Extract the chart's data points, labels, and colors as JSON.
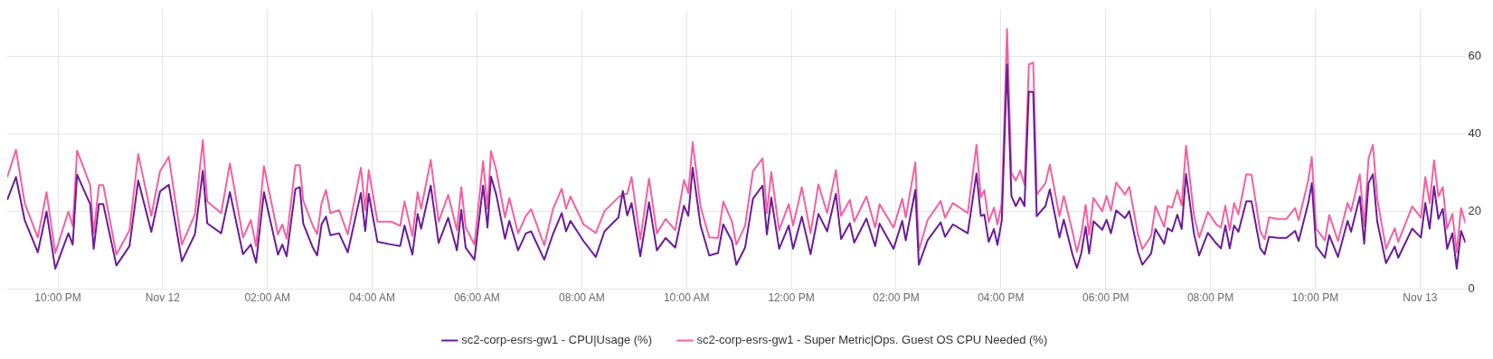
{
  "chart_data": {
    "type": "line",
    "x": [
      "--11-11T21:02",
      "--11-11T21:12",
      "--11-11T21:22",
      "--11-11T21:37",
      "--11-11T21:47",
      "--11-11T21:57",
      "--11-11T22:12",
      "--11-11T22:17",
      "--11-11T22:22",
      "--11-11T22:37",
      "--11-11T22:41",
      "--11-11T22:47",
      "--11-11T22:52",
      "--11-11T23:07",
      "--11-11T23:22",
      "--11-11T23:32",
      "--11-11T23:47",
      "--11-11T23:57",
      "--11-12T00:07",
      "--11-12T00:22",
      "--11-12T00:37",
      "--11-12T00:46",
      "--11-12T00:51",
      "--11-12T01:07",
      "--11-12T01:17",
      "--11-12T01:32",
      "--11-12T01:41",
      "--11-12T01:47",
      "--11-12T01:56",
      "--11-12T02:12",
      "--11-12T02:17",
      "--11-12T02:22",
      "--11-12T02:32",
      "--11-12T02:37",
      "--11-12T02:41",
      "--11-12T02:52",
      "--11-12T02:57",
      "--11-12T03:02",
      "--11-12T03:07",
      "--11-12T03:12",
      "--11-12T03:22",
      "--11-12T03:32",
      "--11-12T03:47",
      "--11-12T03:52",
      "--11-12T03:56",
      "--11-12T04:06",
      "--11-12T04:22",
      "--11-12T04:32",
      "--11-12T04:37",
      "--11-12T04:46",
      "--11-12T04:52",
      "--11-12T04:56",
      "--11-12T05:07",
      "--11-12T05:16",
      "--11-12T05:27",
      "--11-12T05:37",
      "--11-12T05:42",
      "--11-12T05:47",
      "--11-12T05:57",
      "--11-12T06:07",
      "--11-12T06:12",
      "--11-12T06:16",
      "--11-12T06:22",
      "--11-12T06:32",
      "--11-12T06:37",
      "--11-12T06:47",
      "--11-12T06:56",
      "--11-12T07:02",
      "--11-12T07:17",
      "--11-12T07:27",
      "--11-12T07:37",
      "--11-12T07:42",
      "--11-12T07:47",
      "--11-12T08:02",
      "--11-12T08:16",
      "--11-12T08:26",
      "--11-12T08:42",
      "--11-12T08:47",
      "--11-12T08:52",
      "--11-12T08:57",
      "--11-12T09:07",
      "--11-12T09:17",
      "--11-12T09:26",
      "--11-12T09:36",
      "--11-12T09:47",
      "--11-12T09:57",
      "--11-12T10:02",
      "--11-12T10:07",
      "--11-12T10:16",
      "--11-12T10:26",
      "--11-12T10:36",
      "--11-12T10:42",
      "--11-12T10:52",
      "--11-12T10:57",
      "--11-12T11:07",
      "--11-12T11:16",
      "--11-12T11:27",
      "--11-12T11:32",
      "--11-12T11:37",
      "--11-12T11:46",
      "--11-12T11:57",
      "--11-12T12:02",
      "--11-12T12:12",
      "--11-12T12:22",
      "--11-12T12:31",
      "--11-12T12:41",
      "--11-12T12:51",
      "--11-12T12:57",
      "--11-12T13:07",
      "--11-12T13:12",
      "--11-12T13:26",
      "--11-12T13:36",
      "--11-12T13:41",
      "--11-12T13:57",
      "--11-12T14:07",
      "--11-12T14:11",
      "--11-12T14:22",
      "--11-12T14:26",
      "--11-12T14:36",
      "--11-12T14:51",
      "--11-12T14:56",
      "--11-12T15:05",
      "--11-12T15:22",
      "--11-12T15:32",
      "--11-12T15:37",
      "--11-12T15:41",
      "--11-12T15:46",
      "--11-12T15:52",
      "--11-12T15:56",
      "--11-12T16:01",
      "--11-12T16:07",
      "--11-12T16:12",
      "--11-12T16:17",
      "--11-12T16:22",
      "--11-12T16:27",
      "--11-12T16:32",
      "--11-12T16:37",
      "--11-12T16:41",
      "--11-12T16:51",
      "--11-12T16:56",
      "--11-12T17:07",
      "--11-12T17:12",
      "--11-12T17:22",
      "--11-12T17:27",
      "--11-12T17:32",
      "--11-12T17:37",
      "--11-12T17:41",
      "--11-12T17:46",
      "--11-12T17:56",
      "--11-12T18:01",
      "--11-12T18:06",
      "--11-12T18:12",
      "--11-12T18:22",
      "--11-12T18:27",
      "--11-12T18:37",
      "--11-12T18:42",
      "--11-12T18:52",
      "--11-12T18:57",
      "--11-12T19:07",
      "--11-12T19:11",
      "--11-12T19:16",
      "--11-12T19:22",
      "--11-12T19:27",
      "--11-12T19:32",
      "--11-12T19:41",
      "--11-12T19:47",
      "--11-12T19:57",
      "--11-12T20:07",
      "--11-12T20:12",
      "--11-12T20:17",
      "--11-12T20:22",
      "--11-12T20:27",
      "--11-12T20:32",
      "--11-12T20:41",
      "--11-12T20:47",
      "--11-12T20:57",
      "--11-12T21:02",
      "--11-12T21:07",
      "--11-12T21:17",
      "--11-12T21:27",
      "--11-12T21:37",
      "--11-12T21:41",
      "--11-12T21:52",
      "--11-12T21:56",
      "--11-12T22:01",
      "--11-12T22:11",
      "--11-12T22:16",
      "--11-12T22:26",
      "--11-12T22:37",
      "--11-12T22:41",
      "--11-12T22:51",
      "--11-12T22:56",
      "--11-12T23:01",
      "--11-12T23:06",
      "--11-12T23:11",
      "--11-12T23:21",
      "--11-12T23:31",
      "--11-12T23:35",
      "--11-12T23:51",
      "--11-13T00:01",
      "--11-13T00:06",
      "--11-13T00:11",
      "--11-13T00:16",
      "--11-13T00:21",
      "--11-13T00:26",
      "--11-13T00:31",
      "--11-13T00:37",
      "--11-13T00:42",
      "--11-13T00:47",
      "--11-13T00:52"
    ],
    "series": [
      {
        "name": "sc2-corp-esrs-gw1 - CPU|Usage (%)",
        "color": "#6a1b9a",
        "values": [
          23.0,
          28.9,
          17.8,
          9.5,
          20.0,
          5.3,
          14.4,
          11.5,
          29.5,
          21.9,
          10.4,
          21.9,
          21.9,
          6.1,
          11.1,
          28.0,
          14.8,
          25.2,
          26.9,
          7.2,
          14.2,
          30.5,
          17.0,
          14.4,
          25.0,
          9.0,
          11.5,
          6.8,
          25.0,
          8.9,
          11.5,
          8.5,
          25.8,
          26.3,
          16.9,
          10.7,
          8.7,
          16.7,
          18.7,
          13.9,
          14.4,
          9.5,
          24.8,
          15.0,
          24.6,
          12.2,
          11.5,
          11.1,
          16.4,
          8.9,
          19.4,
          15.6,
          26.7,
          11.9,
          18.4,
          10.0,
          20.4,
          10.7,
          7.6,
          26.7,
          15.9,
          29.0,
          24.4,
          13.0,
          17.6,
          10.0,
          14.4,
          14.9,
          7.6,
          14.2,
          19.6,
          14.9,
          17.6,
          12.4,
          8.3,
          14.9,
          18.5,
          25.3,
          19.0,
          22.2,
          8.5,
          22.4,
          10.0,
          13.2,
          10.7,
          21.5,
          18.9,
          31.3,
          16.4,
          8.7,
          9.3,
          16.7,
          12.4,
          6.3,
          10.7,
          23.3,
          26.7,
          14.1,
          23.6,
          10.4,
          16.4,
          10.4,
          18.7,
          9.0,
          19.4,
          14.9,
          24.6,
          12.9,
          17.0,
          12.0,
          18.2,
          11.1,
          16.9,
          10.4,
          17.6,
          12.6,
          25.6,
          6.3,
          12.6,
          17.2,
          13.5,
          16.7,
          14.4,
          29.8,
          18.9,
          19.2,
          12.2,
          15.5,
          11.4,
          17.7,
          57.9,
          24.0,
          21.4,
          23.6,
          21.4,
          50.9,
          50.8,
          18.8,
          21.4,
          25.7,
          13.3,
          17.9,
          8.9,
          5.5,
          9.2,
          16.1,
          9.2,
          17.5,
          15.3,
          17.9,
          14.4,
          20.3,
          18.3,
          20.1,
          9.6,
          6.3,
          9.2,
          15.5,
          11.7,
          15.7,
          14.9,
          19.2,
          15.5,
          29.7,
          14.4,
          8.7,
          14.5,
          11.7,
          10.5,
          16.4,
          10.5,
          16.4,
          14.8,
          22.6,
          22.6,
          10.5,
          9.0,
          13.5,
          13.2,
          13.2,
          15.0,
          12.4,
          22.2,
          27.3,
          11.1,
          8.1,
          13.9,
          8.3,
          17.6,
          14.8,
          23.9,
          11.7,
          27.3,
          29.6,
          17.4,
          6.7,
          11.0,
          8.1,
          15.6,
          13.3,
          22.2,
          15.6,
          26.5,
          18.1,
          20.7,
          10.4,
          14.4,
          5.3,
          15.0,
          12.0
        ]
      },
      {
        "name": "sc2-corp-esrs-gw1 - Super Metric|Ops. Guest OS CPU Needed (%)",
        "color": "#f5609f",
        "values": [
          28.9,
          35.9,
          22.2,
          13.3,
          25.0,
          9.3,
          20.0,
          16.3,
          35.7,
          26.8,
          14.4,
          26.8,
          26.8,
          8.9,
          15.2,
          34.8,
          18.9,
          30.4,
          34.1,
          11.5,
          19.3,
          38.4,
          22.6,
          19.6,
          32.4,
          13.3,
          17.8,
          11.1,
          31.7,
          14.1,
          16.7,
          13.0,
          31.9,
          31.9,
          22.8,
          16.3,
          14.2,
          22.2,
          25.6,
          19.6,
          20.4,
          14.1,
          31.3,
          20.4,
          30.7,
          17.4,
          17.4,
          16.3,
          22.6,
          13.7,
          25.0,
          20.7,
          33.3,
          17.4,
          24.3,
          15.2,
          26.3,
          15.9,
          11.5,
          33.0,
          20.7,
          35.6,
          30.7,
          18.5,
          23.5,
          14.4,
          18.9,
          20.6,
          11.3,
          20.6,
          25.9,
          20.7,
          23.9,
          16.7,
          14.5,
          20.1,
          23.7,
          24.4,
          24.6,
          28.9,
          12.7,
          28.5,
          14.4,
          18.1,
          15.2,
          28.1,
          24.8,
          37.9,
          21.3,
          13.3,
          13.2,
          22.6,
          17.4,
          11.5,
          16.3,
          30.4,
          33.7,
          19.6,
          30.2,
          15.2,
          21.9,
          16.4,
          26.3,
          14.4,
          27.0,
          19.6,
          30.7,
          18.9,
          23.0,
          17.4,
          23.9,
          15.9,
          21.9,
          15.9,
          23.3,
          18.5,
          32.7,
          10.0,
          17.8,
          22.7,
          18.4,
          22.2,
          19.6,
          37.2,
          23.7,
          25.5,
          17.3,
          21.0,
          16.7,
          22.1,
          67.0,
          29.9,
          28.0,
          30.6,
          26.9,
          57.9,
          58.4,
          24.4,
          27.3,
          32.1,
          18.8,
          24.0,
          14.8,
          9.6,
          14.2,
          21.7,
          14.0,
          23.5,
          20.1,
          24.0,
          20.3,
          27.5,
          24.4,
          26.4,
          14.0,
          10.3,
          13.7,
          21.4,
          16.1,
          21.4,
          21.0,
          25.5,
          21.6,
          37.0,
          19.2,
          13.3,
          19.9,
          16.6,
          15.9,
          21.5,
          15.2,
          22.2,
          19.3,
          29.6,
          29.5,
          14.9,
          12.9,
          18.5,
          18.1,
          18.1,
          20.9,
          17.8,
          28.1,
          34.1,
          15.6,
          12.6,
          19.1,
          12.4,
          22.2,
          20.1,
          29.6,
          16.3,
          33.7,
          37.2,
          23.3,
          10.4,
          15.7,
          12.2,
          21.3,
          18.4,
          28.9,
          22.2,
          33.2,
          23.9,
          26.3,
          15.6,
          19.4,
          9.5,
          20.9,
          17.0
        ]
      }
    ],
    "xlim": [
      "--11-11T21:02",
      "--11-13T00:52"
    ],
    "xticks": [
      {
        "value": "--11-11T22:00",
        "label": "10:00 PM"
      },
      {
        "value": "--11-12T00:00",
        "label": "Nov 12"
      },
      {
        "value": "--11-12T02:00",
        "label": "02:00 AM"
      },
      {
        "value": "--11-12T04:00",
        "label": "04:00 AM"
      },
      {
        "value": "--11-12T06:00",
        "label": "06:00 AM"
      },
      {
        "value": "--11-12T08:00",
        "label": "08:00 AM"
      },
      {
        "value": "--11-12T10:00",
        "label": "10:00 AM"
      },
      {
        "value": "--11-12T12:00",
        "label": "12:00 PM"
      },
      {
        "value": "--11-12T14:00",
        "label": "02:00 PM"
      },
      {
        "value": "--11-12T16:00",
        "label": "04:00 PM"
      },
      {
        "value": "--11-12T18:00",
        "label": "06:00 PM"
      },
      {
        "value": "--11-12T20:00",
        "label": "08:00 PM"
      },
      {
        "value": "--11-12T22:00",
        "label": "10:00 PM"
      },
      {
        "value": "--11-13T00:00",
        "label": "Nov 13"
      }
    ],
    "ylim": [
      0,
      72
    ],
    "yticks": [
      0,
      20,
      40,
      60
    ],
    "grid": true,
    "legend": "bottom",
    "marker": "none",
    "line_style": "solid"
  }
}
